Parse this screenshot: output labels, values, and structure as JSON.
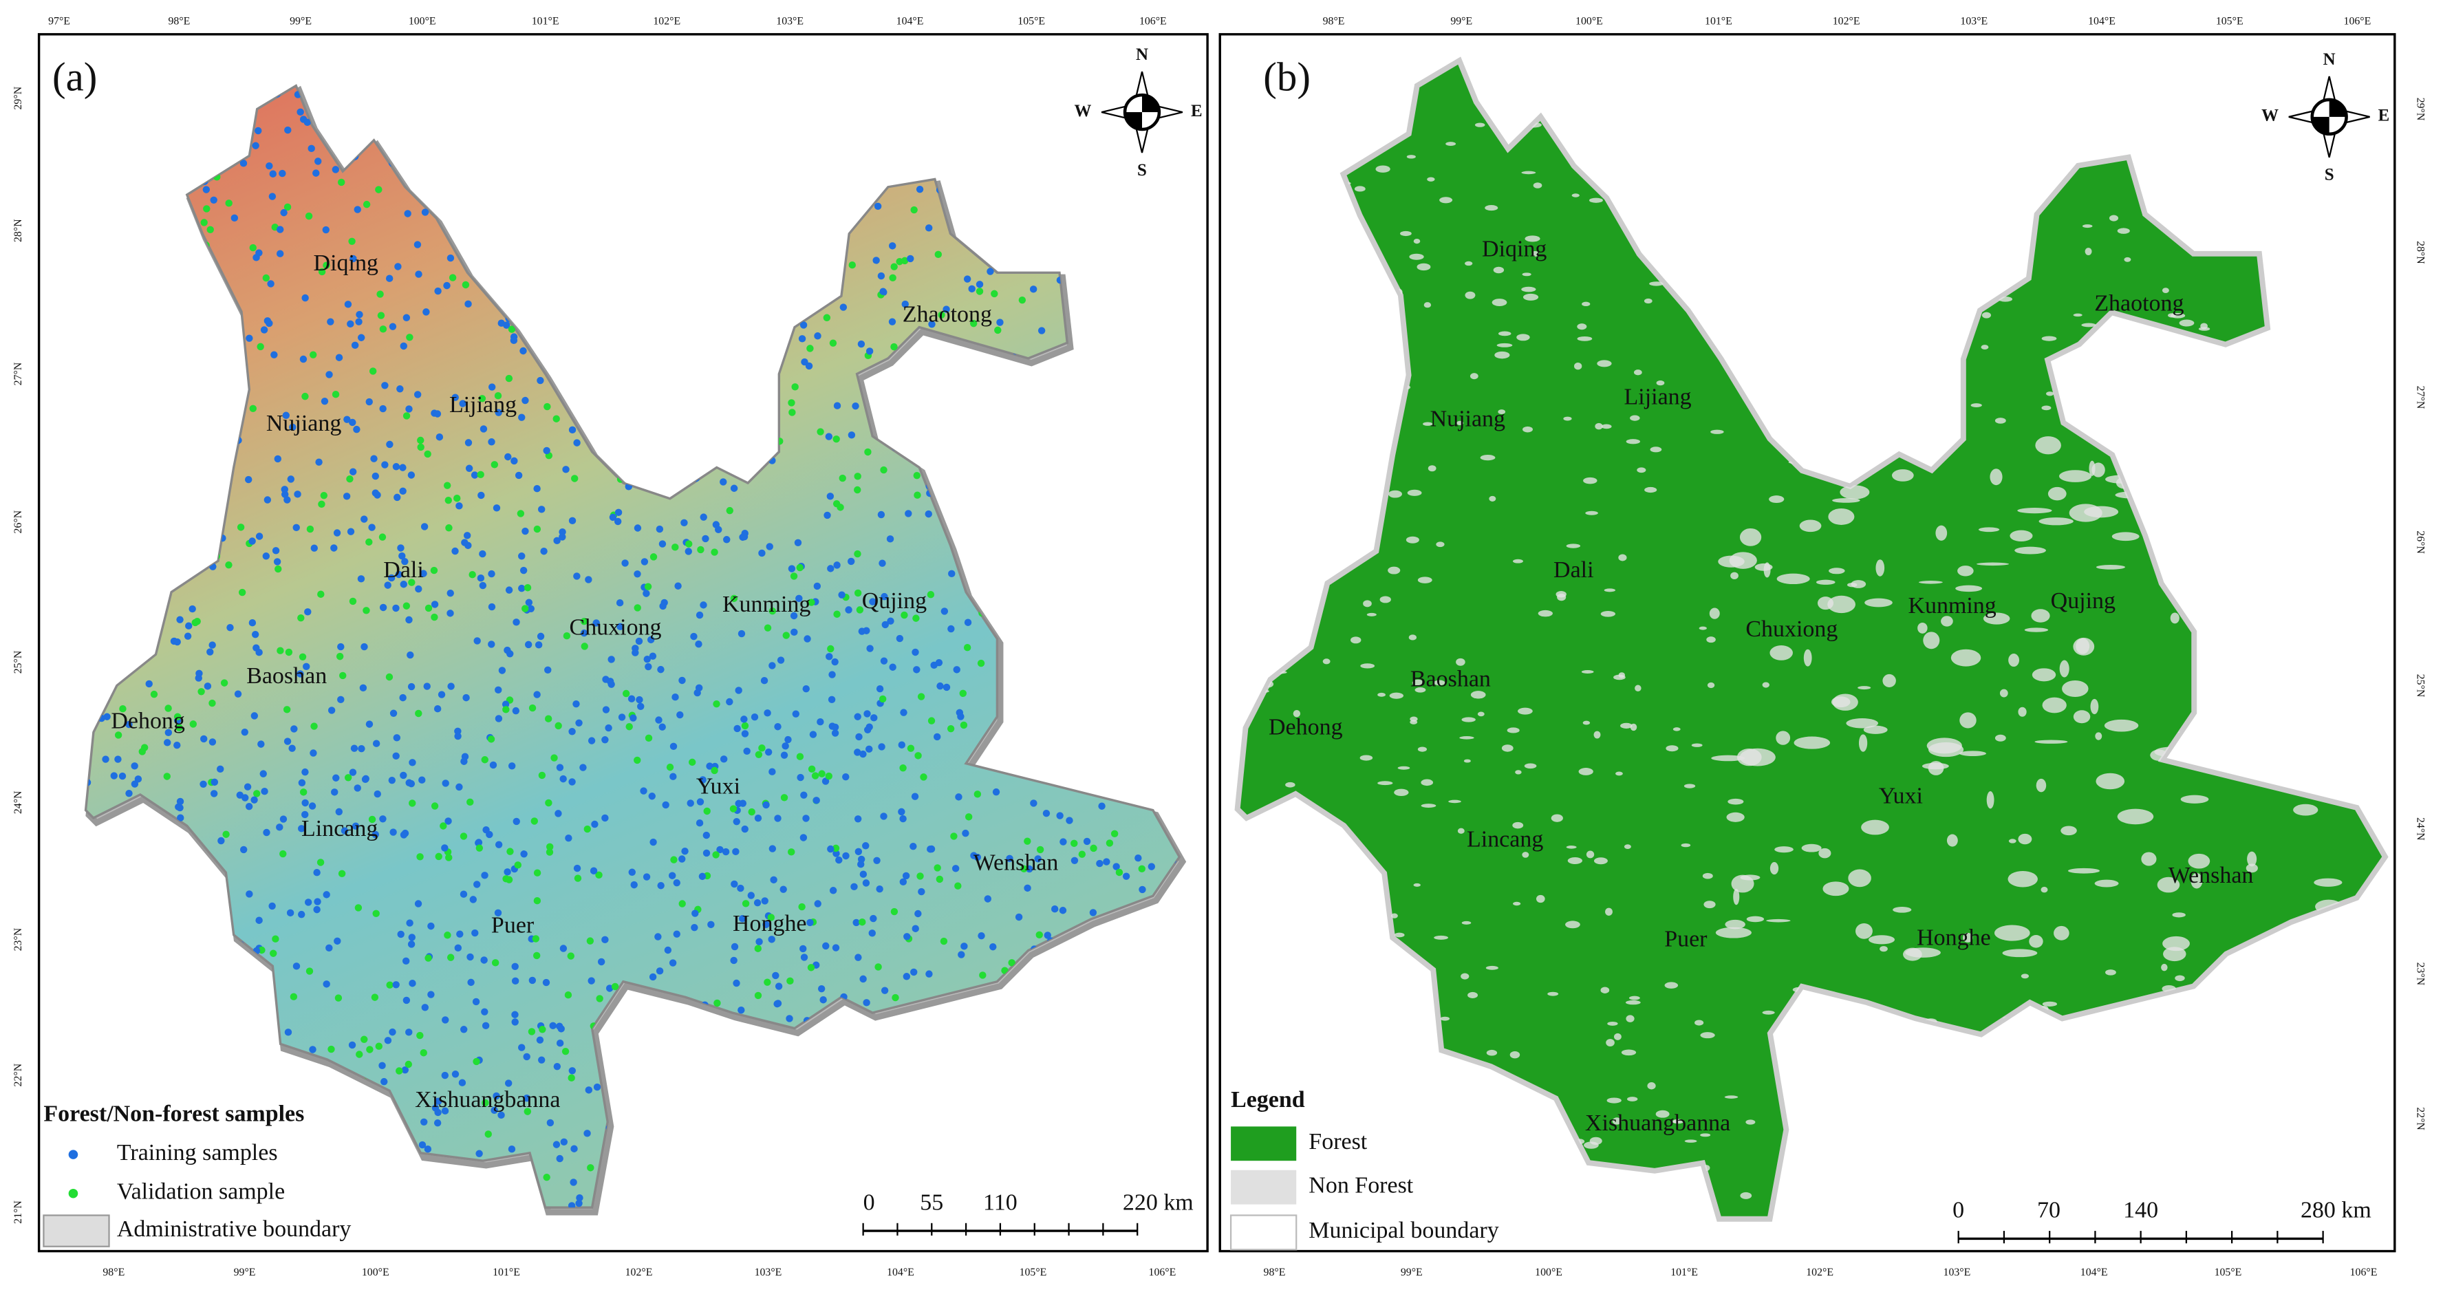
{
  "panel_a": {
    "label": "(a)",
    "lon_top": [
      "97°E",
      "98°E",
      "99°E",
      "100°E",
      "101°E",
      "102°E",
      "103°E",
      "104°E",
      "105°E",
      "106°E"
    ],
    "lon_bottom": [
      "98°E",
      "99°E",
      "100°E",
      "101°E",
      "102°E",
      "103°E",
      "104°E",
      "105°E",
      "106°E"
    ],
    "lat": [
      "29°N",
      "28°N",
      "27°N",
      "26°N",
      "25°N",
      "24°N",
      "23°N",
      "22°N",
      "21°N"
    ],
    "compass": [
      "N",
      "S",
      "W",
      "E"
    ],
    "regions": [
      "Diqing",
      "Nujiang",
      "Lijiang",
      "Dali",
      "Chuxiong",
      "Kunming",
      "Qujing",
      "Zhaotong",
      "Baoshan",
      "Dehong",
      "Lincang",
      "Yuxi",
      "Wenshan",
      "Puer",
      "Honghe",
      "Xishuangbanna"
    ],
    "legend": {
      "title": "Forest/Non-forest samples",
      "items": [
        "Training samples",
        "Validation sample",
        "Administrative boundary"
      ]
    },
    "scale": [
      "0",
      "55",
      "110",
      "220 km"
    ]
  },
  "panel_b": {
    "label": "(b)",
    "lon_top": [
      "98°E",
      "99°E",
      "100°E",
      "101°E",
      "102°E",
      "103°E",
      "104°E",
      "105°E",
      "106°E"
    ],
    "lon_bottom": [
      "98°E",
      "99°E",
      "100°E",
      "101°E",
      "102°E",
      "103°E",
      "104°E",
      "105°E",
      "106°E"
    ],
    "lat": [
      "29°N",
      "28°N",
      "27°N",
      "26°N",
      "25°N",
      "24°N",
      "23°N",
      "22°N"
    ],
    "compass": [
      "N",
      "S",
      "W",
      "E"
    ],
    "regions": [
      "Diqing",
      "Nujiang",
      "Lijiang",
      "Dali",
      "Chuxiong",
      "Kunming",
      "Qujing",
      "Zhaotong",
      "Baoshan",
      "Dehong",
      "Lincang",
      "Yuxi",
      "Wenshan",
      "Puer",
      "Honghe",
      "Xishuangbanna"
    ],
    "legend": {
      "title": "Legend",
      "items": [
        "Forest",
        "Non Forest",
        "Municipal boundary"
      ]
    },
    "scale": [
      "0",
      "70",
      "140",
      "280 km"
    ]
  }
}
